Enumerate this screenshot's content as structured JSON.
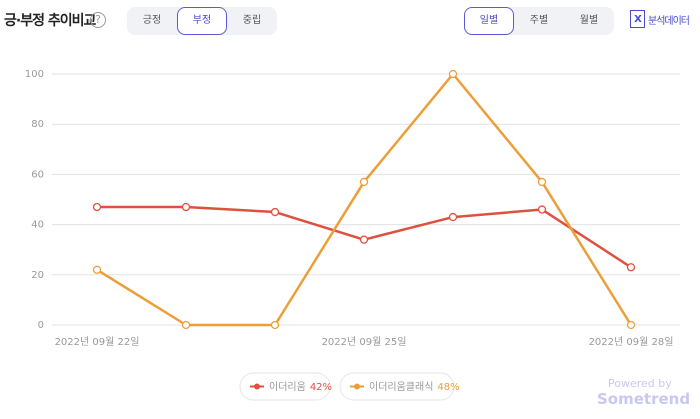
{
  "header": {
    "title": "긍·부정 추이비교",
    "help": "?",
    "sentiment_tabs": [
      "긍정",
      "부정",
      "중립"
    ],
    "period_tabs": [
      "일별",
      "주별",
      "월별"
    ],
    "data_button": "분석데이터"
  },
  "footer": {
    "powered": "Powered by",
    "brand": "Sometrend"
  },
  "chart_data": {
    "type": "line",
    "categories": [
      "2022년 09월 22일",
      null,
      null,
      "2022년 09월 25일",
      null,
      null,
      "2022년 09월 28일"
    ],
    "series": [
      {
        "name": "이더리움",
        "share": "42%",
        "color": "#e0503f",
        "values": [
          47,
          47,
          45,
          34,
          43,
          46,
          23
        ]
      },
      {
        "name": "이더리움클래식",
        "share": "48%",
        "color": "#ec9f38",
        "values": [
          22,
          0,
          0,
          57,
          100,
          57,
          0
        ]
      }
    ],
    "ylim": [
      0,
      100
    ],
    "yticks": [
      0,
      20,
      40,
      60,
      80,
      100
    ],
    "grid": true
  }
}
